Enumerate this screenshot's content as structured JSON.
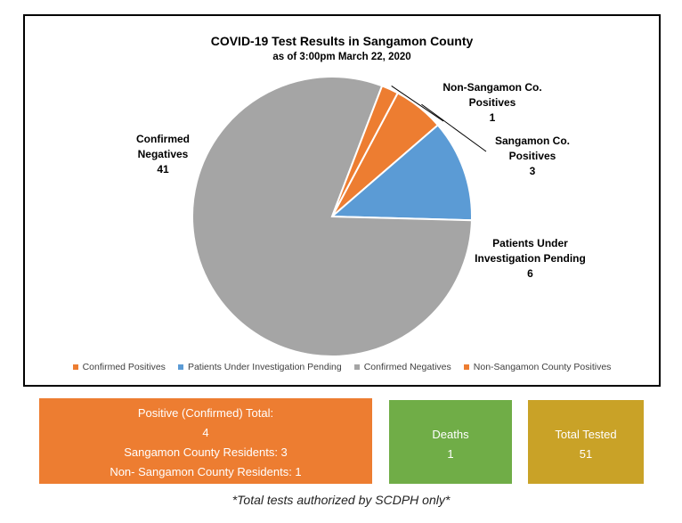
{
  "chart_data": {
    "type": "pie",
    "title": "COVID-19 Test Results in Sangamon County",
    "subtitle": "as of 3:00pm March 22, 2020",
    "slices": [
      {
        "name": "Confirmed Positives",
        "value": 3,
        "color": "#ed7d31",
        "label_lines": [
          "Sangamon Co.",
          "Positives"
        ]
      },
      {
        "name": "Patients Under Investigation Pending",
        "value": 6,
        "color": "#5b9bd5",
        "label_lines": [
          "Patients Under",
          "Investigation Pending"
        ]
      },
      {
        "name": "Confirmed Negatives",
        "value": 41,
        "color": "#a5a5a5",
        "label_lines": [
          "Confirmed",
          "Negatives"
        ]
      },
      {
        "name": "Non-Sangamon County Positives",
        "value": 1,
        "color": "#ed7d31",
        "label_lines": [
          "Non-Sangamon Co.",
          "Positives"
        ]
      }
    ],
    "legend_position": "bottom"
  },
  "summary": {
    "positive": {
      "title": "Positive (Confirmed) Total:",
      "total": "4",
      "residents": "Sangamon County Residents: 3",
      "non_residents": "Non- Sangamon County Residents: 1"
    },
    "deaths": {
      "label": "Deaths",
      "value": "1"
    },
    "tested": {
      "label": "Total Tested",
      "value": "51"
    }
  },
  "footnote": "*Total tests authorized by SCDPH only*",
  "colors": {
    "positive_box": "#ed7d31",
    "deaths_box": "#70ad47",
    "tested_box": "#c9a227"
  }
}
